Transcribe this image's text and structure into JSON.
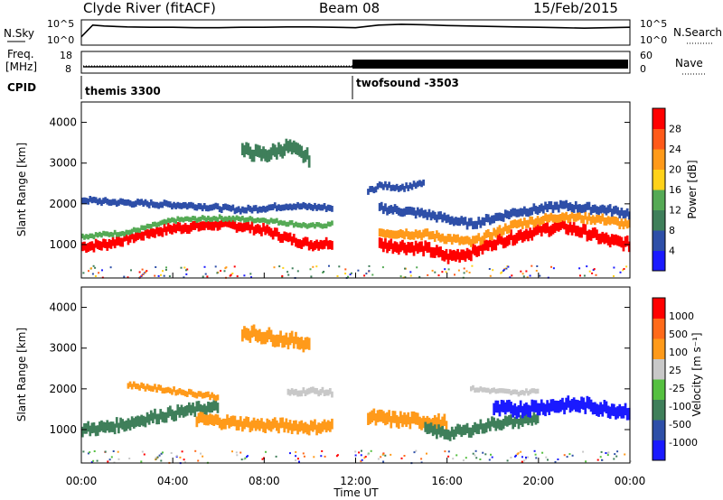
{
  "header": {
    "station": "Clyde River (fitACF)",
    "beam": "Beam 08",
    "date": "15/Feb/2015"
  },
  "noise_panel": {
    "left_label": "N.Sky",
    "right_label": "N.Search",
    "left_ticks": [
      "10^5",
      "10^0"
    ],
    "right_ticks": [
      "10^5",
      "10^0"
    ]
  },
  "freq_panel": {
    "left_label_1": "Freq.",
    "left_label_2": "[MHz]",
    "right_label": "Nave",
    "left_ticks": [
      "18",
      "8"
    ],
    "right_ticks": [
      "60",
      "0"
    ]
  },
  "cpid": {
    "label": "CPID",
    "modes": [
      {
        "name": "themis 3300",
        "start_hour": 0
      },
      {
        "name": "twofsound -3503",
        "start_hour": 12
      }
    ]
  },
  "x_axis": {
    "title": "Time UT",
    "ticks": [
      "00:00",
      "04:00",
      "08:00",
      "12:00",
      "16:00",
      "20:00",
      "00:00"
    ],
    "tick_hours": [
      0,
      4,
      8,
      12,
      16,
      20,
      24
    ],
    "range_hours": [
      0,
      24
    ]
  },
  "power_panel": {
    "ylabel": "Slant Range [km]",
    "yticks": [
      "1000",
      "2000",
      "3000",
      "4000"
    ],
    "colorbar_label": "Power [dB]",
    "colorbar_ticks": [
      "4",
      "8",
      "12",
      "16",
      "20",
      "24",
      "28"
    ]
  },
  "velocity_panel": {
    "ylabel": "Slant Range [km]",
    "yticks": [
      "1000",
      "2000",
      "3000",
      "4000"
    ],
    "colorbar_label": "Velocity  [m s⁻¹]",
    "colorbar_ticks": [
      "1000",
      "500",
      "100",
      "25",
      "-25",
      "-100",
      "-500",
      "-1000"
    ]
  },
  "colors": {
    "power_scale": [
      "#1a1aff",
      "#2e4fa8",
      "#3f7f5a",
      "#55aa55",
      "#ffd21a",
      "#ff9a1a",
      "#ff5a1a",
      "#ff0000"
    ],
    "velocity_scale": [
      "#1a1aff",
      "#2e4fa8",
      "#3f7f5a",
      "#55c040",
      "#c8c8c8",
      "#ff9a1a",
      "#ff6a1a",
      "#ff0000"
    ]
  },
  "chart_data": {
    "type": "heatmap",
    "x_units": "hours UT",
    "y_units": "km",
    "xlim": [
      0,
      24
    ],
    "ylim": [
      180,
      4500
    ],
    "power_bands": [
      {
        "color_index": 7,
        "pts": [
          [
            0,
            950
          ],
          [
            1,
            1000
          ],
          [
            2,
            1150
          ],
          [
            3,
            1300
          ],
          [
            4,
            1400
          ],
          [
            5,
            1450
          ],
          [
            6,
            1500
          ],
          [
            7,
            1450
          ],
          [
            8,
            1350
          ],
          [
            9,
            1150
          ],
          [
            10,
            1000
          ],
          [
            11,
            1050
          ]
        ],
        "width": 220
      },
      {
        "color_index": 3,
        "pts": [
          [
            0,
            1200
          ],
          [
            2,
            1300
          ],
          [
            4,
            1600
          ],
          [
            6,
            1650
          ],
          [
            8,
            1600
          ],
          [
            10,
            1450
          ],
          [
            11,
            1500
          ]
        ],
        "width": 120
      },
      {
        "color_index": 1,
        "pts": [
          [
            0,
            2100
          ],
          [
            1,
            2050
          ],
          [
            5,
            1950
          ],
          [
            7,
            1850
          ],
          [
            9,
            1950
          ],
          [
            11,
            1900
          ]
        ],
        "width": 150
      },
      {
        "color_index": 7,
        "pts": [
          [
            13,
            1000
          ],
          [
            14,
            950
          ],
          [
            15,
            900
          ],
          [
            16,
            700
          ],
          [
            17,
            800
          ],
          [
            18,
            1050
          ],
          [
            19,
            1200
          ],
          [
            20,
            1350
          ],
          [
            21,
            1450
          ],
          [
            22,
            1300
          ],
          [
            23,
            1100
          ],
          [
            24,
            1000
          ]
        ],
        "width": 260
      },
      {
        "color_index": 5,
        "pts": [
          [
            13,
            1300
          ],
          [
            15,
            1250
          ],
          [
            17,
            1050
          ],
          [
            19,
            1500
          ],
          [
            21,
            1700
          ],
          [
            23,
            1600
          ],
          [
            24,
            1450
          ]
        ],
        "width": 200
      },
      {
        "color_index": 1,
        "pts": [
          [
            13,
            1900
          ],
          [
            15,
            1750
          ],
          [
            17,
            1500
          ],
          [
            19,
            1800
          ],
          [
            21,
            1950
          ],
          [
            23,
            1850
          ],
          [
            24,
            1750
          ]
        ],
        "width": 200
      },
      {
        "color_index": 2,
        "pts": [
          [
            7,
            3300
          ],
          [
            8,
            3200
          ],
          [
            9,
            3400
          ],
          [
            10,
            3100
          ]
        ],
        "width": 300
      },
      {
        "color_index": 1,
        "pts": [
          [
            12.5,
            2300
          ],
          [
            13,
            2450
          ],
          [
            14,
            2400
          ],
          [
            15,
            2500
          ]
        ],
        "width": 150
      }
    ],
    "velocity_bands": [
      {
        "color_index": 2,
        "pts": [
          [
            0,
            1000
          ],
          [
            1,
            1050
          ],
          [
            2,
            1150
          ],
          [
            3,
            1300
          ],
          [
            4,
            1400
          ],
          [
            5,
            1500
          ],
          [
            6,
            1550
          ]
        ],
        "width": 260
      },
      {
        "color_index": 5,
        "pts": [
          [
            5,
            1250
          ],
          [
            6,
            1200
          ],
          [
            7,
            1150
          ],
          [
            8,
            1100
          ],
          [
            9,
            1100
          ],
          [
            10,
            1050
          ],
          [
            11,
            1100
          ]
        ],
        "width": 260
      },
      {
        "color_index": 4,
        "pts": [
          [
            9,
            1900
          ],
          [
            10,
            1950
          ],
          [
            11,
            1900
          ]
        ],
        "width": 150
      },
      {
        "color_index": 5,
        "pts": [
          [
            12.5,
            1300
          ],
          [
            13.5,
            1250
          ],
          [
            15,
            1200
          ],
          [
            16,
            1150
          ]
        ],
        "width": 300
      },
      {
        "color_index": 2,
        "pts": [
          [
            15,
            1000
          ],
          [
            16,
            900
          ],
          [
            17,
            1000
          ],
          [
            18,
            1150
          ],
          [
            19,
            1200
          ],
          [
            20,
            1300
          ]
        ],
        "width": 250
      },
      {
        "color_index": 0,
        "pts": [
          [
            18,
            1500
          ],
          [
            19,
            1500
          ],
          [
            20,
            1550
          ],
          [
            21,
            1600
          ],
          [
            22,
            1600
          ],
          [
            23,
            1500
          ],
          [
            24,
            1450
          ]
        ],
        "width": 300
      },
      {
        "color_index": 4,
        "pts": [
          [
            17,
            2000
          ],
          [
            18,
            1950
          ],
          [
            19,
            1900
          ],
          [
            20,
            1950
          ]
        ],
        "width": 120
      },
      {
        "color_index": 5,
        "pts": [
          [
            7,
            3400
          ],
          [
            8,
            3300
          ],
          [
            9,
            3200
          ],
          [
            10,
            3100
          ]
        ],
        "width": 300
      },
      {
        "color_index": 5,
        "pts": [
          [
            2,
            2100
          ],
          [
            4,
            1950
          ],
          [
            6,
            1800
          ]
        ],
        "width": 140
      }
    ],
    "noise_series": [
      {
        "name": "N.Sky",
        "hours": [
          0,
          0.5,
          1,
          2,
          3,
          4,
          5,
          6,
          7,
          8,
          9,
          10,
          11,
          12,
          13,
          14,
          15,
          16,
          17,
          18,
          19,
          20,
          21,
          22,
          23,
          24
        ],
        "values_log10": [
          1.5,
          4.2,
          4.0,
          3.8,
          3.7,
          3.7,
          3.6,
          3.6,
          3.7,
          3.7,
          3.8,
          3.8,
          3.7,
          3.6,
          4.2,
          4.4,
          4.3,
          4.1,
          4.0,
          3.9,
          3.8,
          3.7,
          3.6,
          3.5,
          3.6,
          3.7
        ]
      }
    ],
    "nave_series": [
      {
        "name": "Nave",
        "segments": [
          {
            "hours": [
              0,
              12
            ],
            "value": 15
          },
          {
            "hours": [
              12,
              24
            ],
            "value": 45
          }
        ]
      }
    ]
  }
}
